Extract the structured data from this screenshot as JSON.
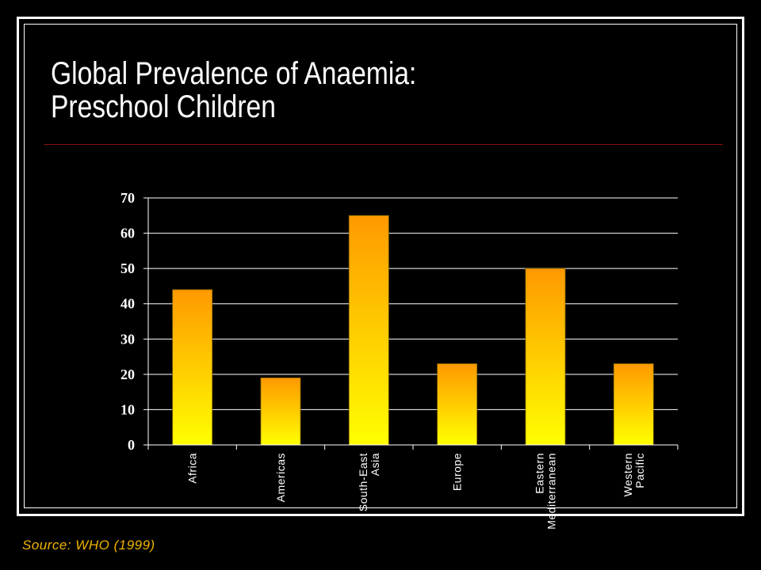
{
  "slide": {
    "title_line1": "Global Prevalence of Anaemia:",
    "title_line2": "Preschool Children",
    "source": "Source: WHO (1999)"
  },
  "colors": {
    "bar_top": "#ff9900",
    "bar_bottom": "#ffff00",
    "grid": "#ffffff",
    "title_rule": "#8a1010",
    "source_text": "#f2b400"
  },
  "chart_data": {
    "type": "bar",
    "categories": [
      [
        "Africa"
      ],
      [
        "Americas"
      ],
      [
        "South-East",
        "Asia"
      ],
      [
        "Europe"
      ],
      [
        "Eastern",
        "Mediterranean"
      ],
      [
        "Western",
        "Pacific"
      ]
    ],
    "values": [
      44,
      19,
      65,
      23,
      50,
      23
    ],
    "yticks": [
      0,
      10,
      20,
      30,
      40,
      50,
      60,
      70
    ],
    "ylim": [
      0,
      70
    ],
    "grid": true,
    "legend": "none",
    "xlabel": "",
    "ylabel": ""
  }
}
